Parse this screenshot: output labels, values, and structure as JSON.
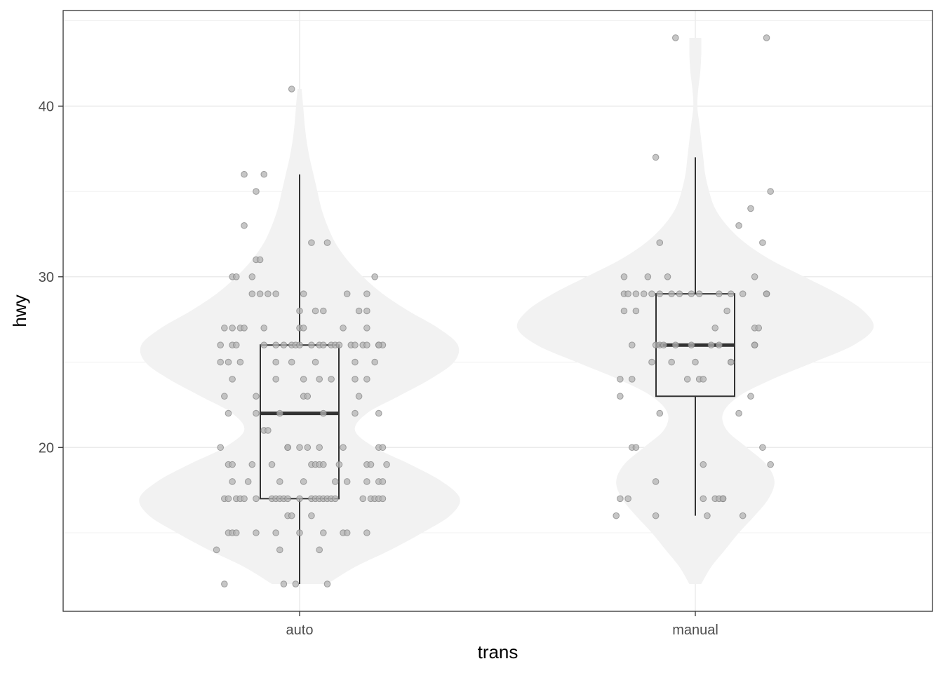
{
  "chart_data": {
    "type": "violin",
    "title": "",
    "xlabel": "trans",
    "ylabel": "hwy",
    "categories": [
      "auto",
      "manual"
    ],
    "ylim": [
      10.4,
      45.6
    ],
    "yticks": [
      20,
      30,
      40
    ],
    "grid": true,
    "colors": {
      "violin_fill": "#f2f2f2",
      "box_line": "#333333",
      "point_fill": "#b3b3b3",
      "point_stroke": "#808080",
      "grid": "#ebebeb",
      "panel_border": "#333333"
    },
    "series": [
      {
        "category": "auto",
        "box": {
          "min": 12,
          "q1": 17,
          "median": 22,
          "q3": 26,
          "max": 36
        },
        "violin": {
          "y": [
            12,
            13,
            14,
            15,
            16,
            17,
            18,
            19,
            20,
            21,
            22,
            23,
            24,
            25,
            26,
            27,
            28,
            29,
            30,
            31,
            32,
            33,
            34,
            35,
            36,
            37,
            38,
            39,
            40,
            41
          ],
          "width": [
            0.14,
            0.28,
            0.46,
            0.62,
            0.76,
            0.81,
            0.72,
            0.56,
            0.38,
            0.28,
            0.34,
            0.5,
            0.66,
            0.78,
            0.8,
            0.7,
            0.55,
            0.42,
            0.32,
            0.24,
            0.18,
            0.14,
            0.11,
            0.09,
            0.07,
            0.05,
            0.035,
            0.025,
            0.018,
            0.01
          ]
        },
        "points": [
          [
            -0.19,
            12
          ],
          [
            -0.04,
            12
          ],
          [
            -0.01,
            12
          ],
          [
            0.07,
            12
          ],
          [
            -0.21,
            14
          ],
          [
            -0.05,
            14
          ],
          [
            0.05,
            14
          ],
          [
            -0.18,
            15
          ],
          [
            -0.17,
            15
          ],
          [
            -0.16,
            15
          ],
          [
            -0.11,
            15
          ],
          [
            -0.06,
            15
          ],
          [
            0.0,
            15
          ],
          [
            0.06,
            15
          ],
          [
            0.11,
            15
          ],
          [
            0.12,
            15
          ],
          [
            0.17,
            15
          ],
          [
            -0.03,
            16
          ],
          [
            -0.02,
            16
          ],
          [
            0.03,
            16
          ],
          [
            -0.19,
            17
          ],
          [
            -0.18,
            17
          ],
          [
            -0.16,
            17
          ],
          [
            -0.15,
            17
          ],
          [
            -0.14,
            17
          ],
          [
            -0.11,
            17
          ],
          [
            -0.07,
            17
          ],
          [
            -0.06,
            17
          ],
          [
            -0.05,
            17
          ],
          [
            -0.04,
            17
          ],
          [
            -0.03,
            17
          ],
          [
            0.0,
            17
          ],
          [
            0.03,
            17
          ],
          [
            0.04,
            17
          ],
          [
            0.05,
            17
          ],
          [
            0.06,
            17
          ],
          [
            0.07,
            17
          ],
          [
            0.08,
            17
          ],
          [
            0.09,
            17
          ],
          [
            0.16,
            17
          ],
          [
            0.18,
            17
          ],
          [
            0.19,
            17
          ],
          [
            0.2,
            17
          ],
          [
            0.21,
            17
          ],
          [
            -0.17,
            18
          ],
          [
            -0.13,
            18
          ],
          [
            -0.05,
            18
          ],
          [
            0.01,
            18
          ],
          [
            0.09,
            18
          ],
          [
            0.12,
            18
          ],
          [
            0.17,
            18
          ],
          [
            0.2,
            18
          ],
          [
            0.21,
            18
          ],
          [
            -0.18,
            19
          ],
          [
            -0.17,
            19
          ],
          [
            -0.12,
            19
          ],
          [
            -0.07,
            19
          ],
          [
            0.03,
            19
          ],
          [
            0.04,
            19
          ],
          [
            0.05,
            19
          ],
          [
            0.06,
            19
          ],
          [
            0.1,
            19
          ],
          [
            0.17,
            19
          ],
          [
            0.18,
            19
          ],
          [
            0.22,
            19
          ],
          [
            -0.2,
            20
          ],
          [
            -0.03,
            20
          ],
          [
            -0.03,
            20
          ],
          [
            0.0,
            20
          ],
          [
            0.02,
            20
          ],
          [
            0.05,
            20
          ],
          [
            0.11,
            20
          ],
          [
            0.2,
            20
          ],
          [
            0.21,
            20
          ],
          [
            -0.09,
            21
          ],
          [
            -0.08,
            21
          ],
          [
            -0.18,
            22
          ],
          [
            -0.11,
            22
          ],
          [
            -0.05,
            22
          ],
          [
            0.06,
            22
          ],
          [
            0.14,
            22
          ],
          [
            0.2,
            22
          ],
          [
            -0.19,
            23
          ],
          [
            -0.11,
            23
          ],
          [
            0.01,
            23
          ],
          [
            0.02,
            23
          ],
          [
            0.15,
            23
          ],
          [
            -0.17,
            24
          ],
          [
            -0.06,
            24
          ],
          [
            0.01,
            24
          ],
          [
            0.05,
            24
          ],
          [
            0.08,
            24
          ],
          [
            0.14,
            24
          ],
          [
            0.17,
            24
          ],
          [
            -0.2,
            25
          ],
          [
            -0.18,
            25
          ],
          [
            -0.15,
            25
          ],
          [
            -0.06,
            25
          ],
          [
            -0.02,
            25
          ],
          [
            0.04,
            25
          ],
          [
            0.14,
            25
          ],
          [
            0.19,
            25
          ],
          [
            -0.2,
            26
          ],
          [
            -0.17,
            26
          ],
          [
            -0.16,
            26
          ],
          [
            -0.09,
            26
          ],
          [
            -0.06,
            26
          ],
          [
            -0.04,
            26
          ],
          [
            -0.02,
            26
          ],
          [
            -0.01,
            26
          ],
          [
            0.0,
            26
          ],
          [
            0.03,
            26
          ],
          [
            0.05,
            26
          ],
          [
            0.06,
            26
          ],
          [
            0.08,
            26
          ],
          [
            0.09,
            26
          ],
          [
            0.1,
            26
          ],
          [
            0.13,
            26
          ],
          [
            0.14,
            26
          ],
          [
            0.16,
            26
          ],
          [
            0.17,
            26
          ],
          [
            0.2,
            26
          ],
          [
            0.21,
            26
          ],
          [
            0.2,
            26
          ],
          [
            -0.19,
            27
          ],
          [
            -0.17,
            27
          ],
          [
            -0.15,
            27
          ],
          [
            -0.14,
            27
          ],
          [
            -0.09,
            27
          ],
          [
            0.0,
            27
          ],
          [
            0.01,
            27
          ],
          [
            0.11,
            27
          ],
          [
            0.17,
            27
          ],
          [
            0.0,
            28
          ],
          [
            0.04,
            28
          ],
          [
            0.06,
            28
          ],
          [
            0.15,
            28
          ],
          [
            0.17,
            28
          ],
          [
            -0.12,
            29
          ],
          [
            -0.1,
            29
          ],
          [
            -0.08,
            29
          ],
          [
            -0.06,
            29
          ],
          [
            0.01,
            29
          ],
          [
            0.12,
            29
          ],
          [
            0.17,
            29
          ],
          [
            -0.17,
            30
          ],
          [
            -0.12,
            30
          ],
          [
            -0.16,
            30
          ],
          [
            0.19,
            30
          ],
          [
            -0.11,
            31
          ],
          [
            -0.1,
            31
          ],
          [
            0.03,
            32
          ],
          [
            0.07,
            32
          ],
          [
            -0.14,
            33
          ],
          [
            -0.11,
            35
          ],
          [
            -0.14,
            36
          ],
          [
            -0.09,
            36
          ],
          [
            -0.02,
            41
          ]
        ]
      },
      {
        "category": "manual",
        "box": {
          "min": 16,
          "q1": 23,
          "median": 26,
          "q3": 29,
          "max": 37
        },
        "violin": {
          "y": [
            12,
            13,
            14,
            15,
            16,
            17,
            18,
            19,
            20,
            21,
            22,
            23,
            24,
            25,
            26,
            27,
            28,
            29,
            30,
            31,
            32,
            33,
            34,
            35,
            36,
            37,
            38,
            39,
            40,
            41,
            42,
            43,
            44
          ],
          "width": [
            0.03,
            0.08,
            0.15,
            0.22,
            0.3,
            0.37,
            0.4,
            0.36,
            0.26,
            0.16,
            0.14,
            0.22,
            0.39,
            0.6,
            0.8,
            0.9,
            0.85,
            0.72,
            0.55,
            0.38,
            0.25,
            0.16,
            0.1,
            0.07,
            0.05,
            0.04,
            0.03,
            0.02,
            0.01,
            0.015,
            0.025,
            0.03,
            0.03
          ]
        },
        "points": [
          [
            -0.2,
            16
          ],
          [
            -0.1,
            16
          ],
          [
            0.03,
            16
          ],
          [
            0.12,
            16
          ],
          [
            -0.19,
            17
          ],
          [
            -0.17,
            17
          ],
          [
            0.02,
            17
          ],
          [
            0.05,
            17
          ],
          [
            0.06,
            17
          ],
          [
            0.07,
            17
          ],
          [
            0.07,
            17
          ],
          [
            -0.1,
            18
          ],
          [
            0.02,
            19
          ],
          [
            0.19,
            19
          ],
          [
            -0.16,
            20
          ],
          [
            -0.15,
            20
          ],
          [
            0.17,
            20
          ],
          [
            -0.09,
            22
          ],
          [
            0.11,
            22
          ],
          [
            -0.19,
            23
          ],
          [
            0.14,
            23
          ],
          [
            -0.19,
            24
          ],
          [
            -0.16,
            24
          ],
          [
            -0.02,
            24
          ],
          [
            0.01,
            24
          ],
          [
            0.02,
            24
          ],
          [
            -0.11,
            25
          ],
          [
            -0.06,
            25
          ],
          [
            0.0,
            25
          ],
          [
            0.09,
            25
          ],
          [
            0.09,
            25
          ],
          [
            -0.16,
            26
          ],
          [
            -0.1,
            26
          ],
          [
            -0.09,
            26
          ],
          [
            -0.08,
            26
          ],
          [
            -0.05,
            26
          ],
          [
            -0.01,
            26
          ],
          [
            0.04,
            26
          ],
          [
            0.06,
            26
          ],
          [
            0.15,
            26
          ],
          [
            0.15,
            26
          ],
          [
            0.05,
            27
          ],
          [
            0.15,
            27
          ],
          [
            0.16,
            27
          ],
          [
            -0.18,
            28
          ],
          [
            -0.15,
            28
          ],
          [
            0.08,
            28
          ],
          [
            -0.18,
            29
          ],
          [
            -0.17,
            29
          ],
          [
            -0.15,
            29
          ],
          [
            -0.13,
            29
          ],
          [
            -0.11,
            29
          ],
          [
            -0.09,
            29
          ],
          [
            -0.06,
            29
          ],
          [
            -0.04,
            29
          ],
          [
            -0.01,
            29
          ],
          [
            0.01,
            29
          ],
          [
            0.06,
            29
          ],
          [
            0.09,
            29
          ],
          [
            0.12,
            29
          ],
          [
            0.18,
            29
          ],
          [
            0.18,
            29
          ],
          [
            -0.18,
            30
          ],
          [
            -0.12,
            30
          ],
          [
            -0.07,
            30
          ],
          [
            0.15,
            30
          ],
          [
            -0.09,
            32
          ],
          [
            0.17,
            32
          ],
          [
            0.11,
            33
          ],
          [
            0.14,
            34
          ],
          [
            0.19,
            35
          ],
          [
            -0.1,
            37
          ],
          [
            -0.05,
            44
          ],
          [
            0.18,
            44
          ]
        ]
      }
    ]
  }
}
